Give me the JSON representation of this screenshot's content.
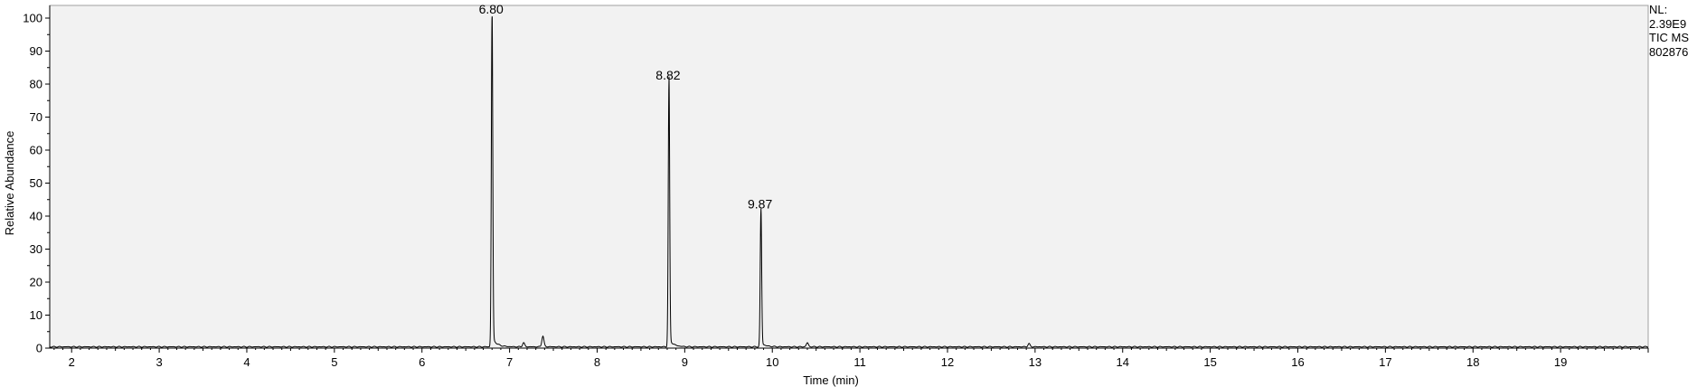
{
  "chart_data": {
    "type": "line",
    "title": "",
    "xlabel": "Time (min)",
    "ylabel": "Relative Abundance",
    "xlim": [
      1.75,
      20
    ],
    "ylim": [
      0,
      100
    ],
    "xticks": [
      2,
      3,
      4,
      5,
      6,
      7,
      8,
      9,
      10,
      11,
      12,
      13,
      14,
      15,
      16,
      17,
      18,
      19
    ],
    "yticks": [
      0,
      10,
      20,
      30,
      40,
      50,
      60,
      70,
      80,
      90,
      100
    ],
    "baseline": 0.4,
    "peaks": [
      {
        "time": 6.8,
        "height": 100,
        "label": "6.80"
      },
      {
        "time": 8.82,
        "height": 80,
        "label": "8.82"
      },
      {
        "time": 9.87,
        "height": 41,
        "label": "9.87"
      },
      {
        "time": 7.38,
        "height": 3.2,
        "label": ""
      },
      {
        "time": 7.16,
        "height": 1.2,
        "label": ""
      },
      {
        "time": 10.4,
        "height": 1.2,
        "label": ""
      },
      {
        "time": 12.93,
        "height": 0.9,
        "label": ""
      }
    ],
    "info": [
      "NL:",
      "2.39E9",
      "TIC  MS",
      "802876"
    ]
  }
}
